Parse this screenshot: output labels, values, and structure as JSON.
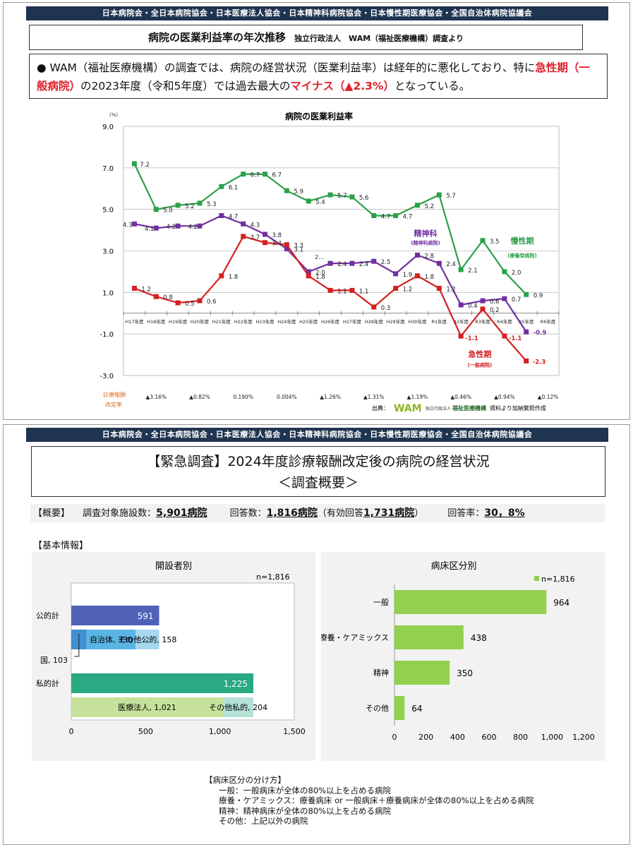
{
  "header_banner": "日本病院会・全日本病院協会・日本医療法人協会・日本精神科病院協会・日本慢性期医療協会・全国自治体病院協議会",
  "slide1": {
    "title": "病院の医業利益率の年次推移",
    "title_sub": "独立行政法人　WAM（福祉医療機構）調査より",
    "note_bullet": "●",
    "note_part1": "WAM（福祉医療機構）の調査では、病院の経営状況（医業利益率）は経年的に悪化しており、特に",
    "note_red1": "急性期（一般病院）",
    "note_part2": "の2023年度（令和5年度）では過去最大の",
    "note_red2": "マイナス（▲2.3%）",
    "note_part3": "となっている。",
    "rev_label1": "診療報酬",
    "rev_label2": "改定率",
    "source": "出典：",
    "source_logo": "WAM",
    "source_org1": "独立行政法人",
    "source_org2": "福祉医療機構",
    "source_tail": "資料より加納繁照作成"
  },
  "chart_data": [
    {
      "type": "line",
      "title": "病院の医業利益率",
      "ylabel": "(%)",
      "ylim": [
        -3.0,
        9.0
      ],
      "yticks": [
        "9.0",
        "7.0",
        "5.0",
        "3.0",
        "1.0",
        "-1.0",
        "-3.0"
      ],
      "categories": [
        "H17年度",
        "H18年度",
        "H19年度",
        "H20年度",
        "H21年度",
        "H22年度",
        "H23年度",
        "H24年度",
        "H25年度",
        "H26年度",
        "H27年度",
        "H28年度",
        "H29年度",
        "H30年度",
        "R1年度",
        "R2年度",
        "R3年度",
        "R4年度",
        "R5年度",
        "R6年度"
      ],
      "series": [
        {
          "name": "慢性期",
          "sub": "(療養型病院)",
          "color": "#2ca04a",
          "values": [
            7.2,
            5.0,
            5.2,
            5.3,
            6.1,
            6.7,
            6.7,
            5.9,
            5.4,
            5.7,
            5.6,
            4.7,
            4.7,
            5.2,
            5.7,
            2.1,
            3.5,
            2.0,
            0.9,
            null
          ],
          "labels": [
            "7.2",
            "5.0",
            "5.2",
            "5.3",
            "6.1",
            "6.7",
            "6.7",
            "5.9",
            "5.4",
            "5.7",
            "5.6",
            "4.7",
            "4.7",
            "5.2",
            "5.7",
            "2.1",
            "3.5",
            "2.0",
            "0.9",
            ""
          ]
        },
        {
          "name": "精神科",
          "sub": "(精神科病院)",
          "color": "#7030a0",
          "values": [
            4.3,
            4.1,
            4.2,
            4.2,
            4.7,
            4.3,
            3.8,
            3.1,
            2.0,
            2.4,
            2.4,
            2.5,
            1.9,
            2.8,
            2.4,
            0.4,
            0.6,
            0.7,
            -0.9,
            null
          ],
          "labels": [
            "4.3",
            "4.1",
            "4.2",
            "4.2",
            "4.7",
            "4.3",
            "3.8",
            "3.1",
            "2.0",
            "2.4",
            "2.4",
            "2.5",
            "1.9",
            "2.8",
            "2.4",
            "0.4",
            "0.6",
            "0.7",
            "-0.9",
            ""
          ]
        },
        {
          "name": "急性期",
          "sub": "(一般病院)",
          "color": "#d42020",
          "values": [
            1.2,
            0.8,
            0.5,
            0.6,
            1.8,
            3.7,
            3.4,
            3.3,
            1.8,
            1.1,
            1.1,
            0.3,
            1.2,
            1.8,
            1.2,
            -1.1,
            0.2,
            -1.1,
            -2.3,
            null
          ],
          "labels": [
            "1.2",
            "0.8",
            "0.5",
            "0.6",
            "1.8",
            "3.7",
            "3.4",
            "3.3",
            "1.8",
            "1.1",
            "1.1",
            "0.3",
            "1.2",
            "1.8",
            "1.2",
            "-1.1",
            "0.2",
            "-1.1",
            "-2.3",
            ""
          ]
        }
      ],
      "revision_rates": [
        "▲3.16%",
        "▲0.82%",
        "0.190%",
        "0.004%",
        "▲1.26%",
        "▲1.31%",
        "▲1.19%",
        "▲0.46%",
        "▲0.94%",
        "▲0.12%"
      ],
      "extra_labels": [
        "2…"
      ],
      "grid": true
    },
    {
      "type": "bar",
      "title": "開設者別",
      "n_label": "n=1,816",
      "orientation": "horizontal",
      "xlim": [
        0,
        1500
      ],
      "xticks": [
        "0",
        "500",
        "1,000",
        "1,500"
      ],
      "rows": [
        {
          "label": "公的計",
          "segments": [
            {
              "value": 591,
              "label": "591",
              "color": "#4f62b8"
            }
          ]
        },
        {
          "label": "",
          "segments": [
            {
              "value": 103,
              "label": "国, 103",
              "color": "#3e90d2"
            },
            {
              "value": 330,
              "label": "自治体, 330",
              "color": "#5ab4e4"
            },
            {
              "value": 158,
              "label": "その他公的, 158",
              "color": "#a6d8f0"
            }
          ]
        },
        {
          "label": "私的計",
          "segments": [
            {
              "value": 1225,
              "label": "1,225",
              "color": "#2aaa82"
            }
          ]
        },
        {
          "label": "",
          "segments": [
            {
              "value": 1021,
              "label": "医療法人, 1,021",
              "color": "#c6e29a"
            },
            {
              "value": 204,
              "label": "その他私的, 204",
              "color": "#b4e2d6"
            }
          ]
        }
      ]
    },
    {
      "type": "bar",
      "title": "病床区分別",
      "orientation": "horizontal",
      "xlim": [
        0,
        1200
      ],
      "xticks": [
        "0",
        "200",
        "400",
        "600",
        "800",
        "1,000",
        "1,200"
      ],
      "series": [
        {
          "name": "n=1,816",
          "color": "#92d050"
        }
      ],
      "categories": [
        "一般",
        "療養・ケアミックス",
        "精神",
        "その他"
      ],
      "values": [
        964,
        438,
        350,
        64
      ],
      "value_labels": [
        "964",
        "438",
        "350",
        "64"
      ]
    }
  ],
  "slide2": {
    "title_line1": "【緊急調査】2024年度診療報酬改定後の病院の経営状況",
    "title_line2": "＜調査概要＞",
    "summary_label": "【概要】",
    "facilities_label": "調査対象施設数：",
    "facilities_value": "5,901病院",
    "responses_label": "回答数：",
    "responses_value": "1,816病院",
    "valid_open": "（有効回答",
    "valid_value": "1,731病院",
    "valid_close": "）",
    "rate_label": "回答率：",
    "rate_value": "30，8%",
    "basic_info": "【基本情報】",
    "legend_title": "【病床区分の分け方】",
    "legend_lines": [
      "一般：一般病床が全体の80%以上を占める病院",
      "療養・ケアミックス：療養病床 or 一般病床＋療養病床が全体の80%以上を占める病院",
      "精神：精神病床が全体の80%以上を占める病院",
      "その他：上記以外の病院"
    ]
  }
}
